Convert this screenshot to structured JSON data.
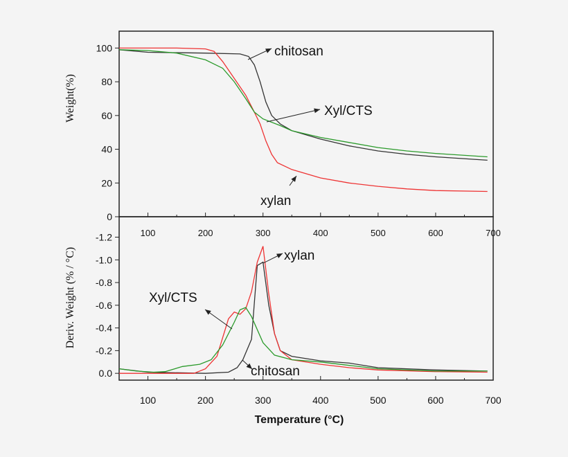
{
  "chart_data": [
    {
      "type": "line",
      "ylabel": "Weight(%)",
      "xlim": [
        50,
        700
      ],
      "ylim": [
        0,
        110
      ],
      "x_ticks": [
        100,
        200,
        300,
        400,
        500,
        600,
        700
      ],
      "y_ticks": [
        0,
        20,
        40,
        60,
        80,
        100
      ],
      "grid": false,
      "colors": {
        "chitosan": "#333333",
        "xylan": "#ee3333",
        "xylcts": "#2a9a2a"
      },
      "series": [
        {
          "name": "chitosan",
          "x": [
            50,
            100,
            200,
            260,
            275,
            285,
            295,
            305,
            315,
            330,
            350,
            400,
            450,
            500,
            550,
            600,
            690
          ],
          "y": [
            99,
            97.5,
            97,
            96.5,
            95,
            90,
            80,
            68,
            60,
            55,
            51,
            46,
            42,
            39,
            37,
            35.5,
            33.5
          ]
        },
        {
          "name": "xylan",
          "x": [
            50,
            150,
            200,
            215,
            230,
            250,
            270,
            285,
            295,
            305,
            315,
            325,
            350,
            400,
            450,
            500,
            550,
            600,
            690
          ],
          "y": [
            100,
            100,
            99.5,
            98,
            92,
            82,
            72,
            62,
            55,
            45,
            37,
            32,
            28,
            23,
            20,
            18,
            16.5,
            15.5,
            15
          ]
        },
        {
          "name": "Xyl/CTS",
          "x": [
            50,
            100,
            150,
            200,
            230,
            250,
            270,
            285,
            300,
            330,
            350,
            400,
            450,
            500,
            550,
            600,
            690
          ],
          "y": [
            99,
            98.5,
            97,
            93,
            88,
            80,
            70,
            62,
            58,
            54,
            51,
            47,
            44,
            41,
            39,
            37.5,
            35.5
          ]
        }
      ],
      "annotations": [
        "chitosan",
        "Xyl/CTS",
        "xylan"
      ]
    },
    {
      "type": "line",
      "xlabel": "Temperature (°C)",
      "ylabel": "Deriv. Weight  (% / °C)",
      "xlim": [
        50,
        700
      ],
      "ylim": [
        0.06,
        -1.38
      ],
      "y_reversed": true,
      "x_ticks": [
        100,
        200,
        300,
        400,
        500,
        600,
        700
      ],
      "y_ticks": [
        "0.0",
        "-0.2",
        "-0.4",
        "-0.6",
        "-0.8",
        "-1.0",
        "-1.2"
      ],
      "grid": false,
      "series": [
        {
          "name": "chitosan",
          "x": [
            50,
            100,
            200,
            240,
            255,
            265,
            280,
            290,
            300,
            310,
            320,
            330,
            350,
            400,
            450,
            500,
            600,
            690
          ],
          "y": [
            -0.04,
            -0.01,
            0,
            -0.01,
            -0.05,
            -0.12,
            -0.3,
            -0.95,
            -0.98,
            -0.6,
            -0.35,
            -0.2,
            -0.15,
            -0.11,
            -0.09,
            -0.05,
            -0.03,
            -0.02
          ]
        },
        {
          "name": "xylan",
          "x": [
            50,
            180,
            200,
            220,
            240,
            250,
            260,
            270,
            280,
            290,
            300,
            310,
            320,
            330,
            350,
            400,
            450,
            500,
            600,
            690
          ],
          "y": [
            0,
            0,
            -0.04,
            -0.15,
            -0.48,
            -0.54,
            -0.52,
            -0.57,
            -0.72,
            -0.98,
            -1.12,
            -0.7,
            -0.35,
            -0.2,
            -0.12,
            -0.08,
            -0.05,
            -0.03,
            -0.015,
            -0.01
          ]
        },
        {
          "name": "Xyl/CTS",
          "x": [
            50,
            80,
            110,
            130,
            160,
            190,
            210,
            230,
            250,
            260,
            270,
            280,
            300,
            320,
            350,
            400,
            450,
            500,
            600,
            690
          ],
          "y": [
            -0.04,
            -0.02,
            -0.01,
            -0.015,
            -0.06,
            -0.08,
            -0.12,
            -0.25,
            -0.45,
            -0.56,
            -0.58,
            -0.5,
            -0.27,
            -0.16,
            -0.12,
            -0.1,
            -0.07,
            -0.04,
            -0.02,
            -0.02
          ]
        }
      ],
      "annotations": [
        "xylan",
        "Xyl/CTS",
        "chitosan"
      ]
    }
  ]
}
